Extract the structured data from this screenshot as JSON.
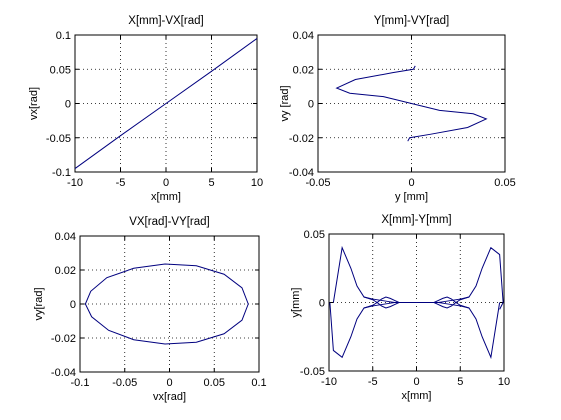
{
  "chart_data": [
    {
      "type": "line",
      "title": "X[mm]-VX[rad]",
      "xlabel": "x[mm]",
      "ylabel": "vx[rad]",
      "xlim": [
        -10,
        10
      ],
      "ylim": [
        -0.1,
        0.1
      ],
      "xticks": [
        -10,
        -5,
        0,
        5,
        10
      ],
      "xtick_labels": [
        "-10",
        "-5",
        "0",
        "5",
        "10"
      ],
      "yticks": [
        -0.1,
        -0.05,
        0,
        0.05,
        0.1
      ],
      "ytick_labels": [
        "-0.1",
        "-0.05",
        "0",
        "0.05",
        "0.1"
      ],
      "grid": true,
      "color": "#00007f",
      "series": [
        {
          "x": [
            -10,
            -5,
            0,
            5,
            10
          ],
          "y": [
            -0.095,
            -0.047,
            0,
            0.047,
            0.095
          ]
        }
      ]
    },
    {
      "type": "line",
      "title": "Y[mm]-VY[rad]",
      "xlabel": "y [mm]",
      "ylabel": "vy [rad]",
      "xlim": [
        -0.05,
        0.05
      ],
      "ylim": [
        -0.04,
        0.04
      ],
      "xticks": [
        -0.05,
        0,
        0.05
      ],
      "xtick_labels": [
        "-0.05",
        "0",
        "0.05"
      ],
      "yticks": [
        -0.04,
        -0.02,
        0,
        0.02,
        0.04
      ],
      "ytick_labels": [
        "-0.04",
        "-0.02",
        "0",
        "0.02",
        "0.04"
      ],
      "grid": true,
      "color": "#00007f",
      "series": [
        {
          "x": [
            0.002,
            0.001,
            -0.01,
            -0.03,
            -0.04,
            -0.033,
            -0.015,
            0,
            0.015,
            0.033,
            0.04,
            0.03,
            0.01,
            -0.001,
            -0.002
          ],
          "y": [
            0.022,
            0.02,
            0.018,
            0.014,
            0.009,
            0.006,
            0.004,
            0,
            -0.004,
            -0.006,
            -0.009,
            -0.014,
            -0.018,
            -0.02,
            -0.022
          ]
        }
      ]
    },
    {
      "type": "line",
      "title": "VX[rad]-VY[rad]",
      "xlabel": "vx[rad]",
      "ylabel": "vy[rad]",
      "xlim": [
        -0.1,
        0.1
      ],
      "ylim": [
        -0.04,
        0.04
      ],
      "xticks": [
        -0.1,
        -0.05,
        0,
        0.05,
        0.1
      ],
      "xtick_labels": [
        "-0.1",
        "-0.05",
        "0",
        "0.05",
        "0.1"
      ],
      "yticks": [
        -0.04,
        -0.02,
        0,
        0.02,
        0.04
      ],
      "ytick_labels": [
        "-0.04",
        "-0.02",
        "0",
        "0.02",
        "0.04"
      ],
      "grid": true,
      "color": "#00007f",
      "series": [
        {
          "x": [
            0.088,
            0.081,
            0.061,
            0.03,
            -0.005,
            -0.04,
            -0.07,
            -0.088,
            -0.094,
            -0.087,
            -0.068,
            -0.04,
            -0.005,
            0.03,
            0.061,
            0.081,
            0.088
          ],
          "y": [
            0,
            0.0095,
            0.0175,
            0.0225,
            0.0235,
            0.021,
            0.0155,
            0.0075,
            0,
            -0.0075,
            -0.0155,
            -0.021,
            -0.0235,
            -0.0225,
            -0.0175,
            -0.0095,
            0
          ]
        }
      ]
    },
    {
      "type": "line",
      "title": "X[mm]-Y[mm]",
      "xlabel": "x[mm]",
      "ylabel": "y[mm]",
      "xlim": [
        -10,
        10
      ],
      "ylim": [
        -0.05,
        0.05
      ],
      "xticks": [
        -10,
        -5,
        0,
        5,
        10
      ],
      "xtick_labels": [
        "-10",
        "-5",
        "0",
        "5",
        "10"
      ],
      "yticks": [
        -0.05,
        0,
        0.05
      ],
      "ytick_labels": [
        "-0.05",
        "0",
        "0.05"
      ],
      "grid": true,
      "color": "#00007f",
      "series": [
        {
          "x": [
            -9.5,
            -8.5,
            -7.5,
            -6.8,
            -6,
            -5,
            -4,
            -3,
            -2.5,
            -2,
            -1,
            0,
            1,
            2,
            2.5,
            3,
            4,
            5,
            6,
            6.8,
            7.5,
            8.5,
            9.5,
            9.9,
            9.5
          ],
          "y": [
            0,
            0.04,
            0.025,
            0.012,
            0.004,
            0.0025,
            0.0015,
            0.0005,
            0,
            0,
            0,
            0,
            0,
            0,
            0,
            0.0005,
            0.0015,
            0.0025,
            0.004,
            0.012,
            0.025,
            0.04,
            0.035,
            0,
            -0.005
          ]
        },
        {
          "x": [
            -9.9,
            -9.5,
            -8.5,
            -7.5,
            -6.8,
            -6,
            -5,
            -4,
            -3,
            -2.5,
            -2,
            -1,
            0,
            1,
            2,
            2.5,
            3,
            4,
            5,
            6,
            6.8,
            7.5,
            8.5,
            9.5
          ],
          "y": [
            0,
            -0.035,
            -0.04,
            -0.025,
            -0.012,
            -0.004,
            -0.0025,
            -0.0015,
            -0.0005,
            0,
            0,
            0,
            0,
            0,
            0,
            0,
            -0.0005,
            -0.0015,
            -0.0025,
            -0.004,
            -0.012,
            -0.025,
            -0.04,
            0
          ]
        },
        {
          "x": [
            -6,
            -5,
            -4.5,
            -4,
            -3.5,
            -3,
            -2.5,
            -2,
            -1.5,
            -1,
            0,
            1,
            1.5,
            2,
            2.5,
            3,
            3.5,
            4,
            4.5,
            5,
            6
          ],
          "y": [
            -0.004,
            -0.002,
            0,
            0.0025,
            0.004,
            0.003,
            0.0015,
            0,
            0,
            0,
            0,
            0,
            0,
            0,
            -0.0015,
            -0.003,
            -0.004,
            -0.0025,
            0,
            0.002,
            0.004
          ]
        },
        {
          "x": [
            -6,
            -5,
            -4.5,
            -4,
            -3.5,
            -3,
            -2.5,
            -2,
            -1.5,
            -1,
            0,
            1,
            1.5,
            2,
            2.5,
            3,
            3.5,
            4,
            4.5,
            5,
            6
          ],
          "y": [
            0.004,
            0.002,
            0,
            -0.0025,
            -0.004,
            -0.003,
            -0.0015,
            0,
            0,
            0,
            0,
            0,
            0,
            0,
            0.0015,
            0.003,
            0.004,
            0.0025,
            0,
            -0.002,
            -0.004
          ]
        }
      ]
    }
  ]
}
